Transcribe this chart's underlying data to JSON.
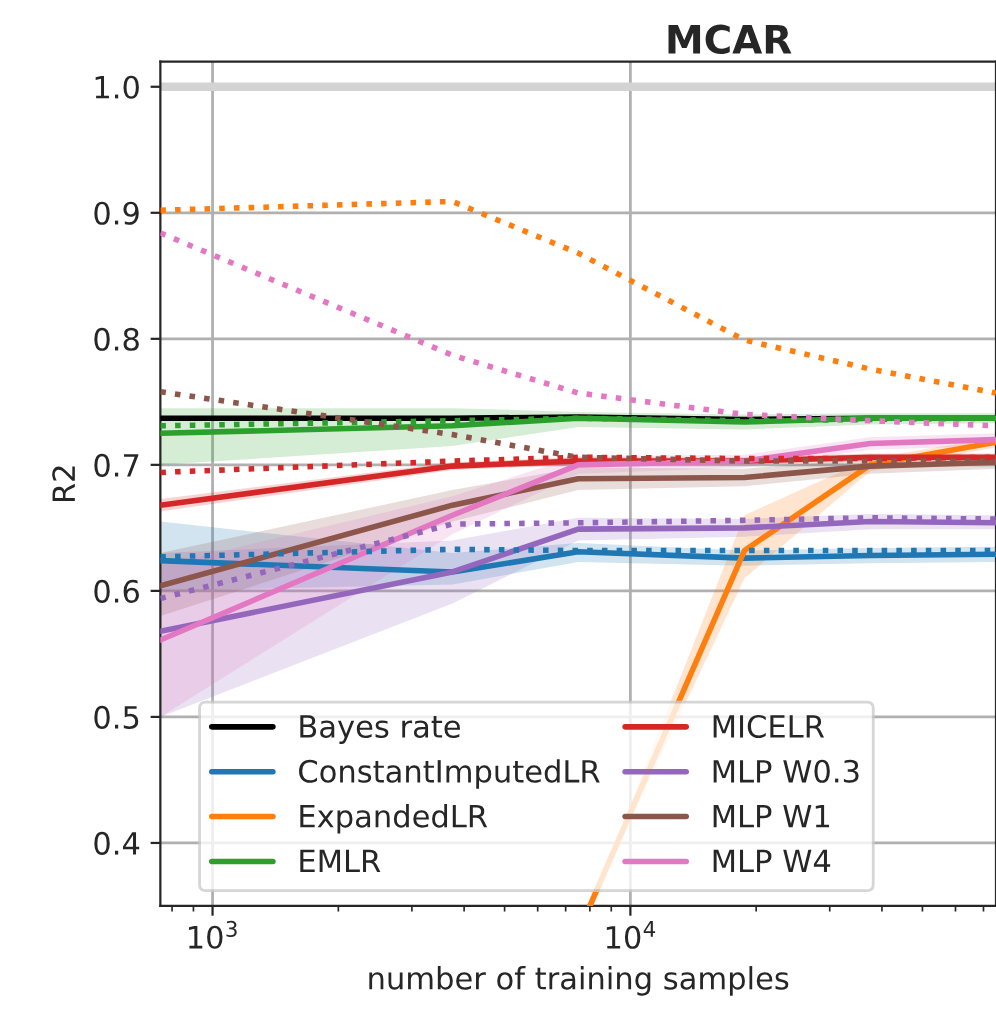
{
  "chart_data": {
    "type": "line",
    "title": "MCAR",
    "xlabel": "number of training samples",
    "ylabel": "R2",
    "x": [
      750,
      3750,
      7500,
      18750,
      37500,
      75000
    ],
    "series": [
      {
        "name": "Bayes rate",
        "color": "#000000",
        "line_style": "solid",
        "values": [
          0.737,
          0.737,
          0.738,
          0.736,
          0.737,
          0.737
        ]
      },
      {
        "name": "ConstantImputedLR",
        "color": "#1f77b4",
        "line_style": "solid",
        "values": [
          0.624,
          0.615,
          0.631,
          0.626,
          0.628,
          0.629
        ],
        "lower": [
          0.6,
          0.605,
          0.623,
          0.62,
          0.622,
          0.623
        ],
        "upper": [
          0.655,
          0.63,
          0.638,
          0.632,
          0.634,
          0.635
        ]
      },
      {
        "name": "ExpandedLR",
        "color": "#ff7f0e",
        "line_style": "solid",
        "x": [
          8000,
          18750,
          37500,
          75000
        ],
        "values": [
          0.35,
          0.632,
          0.7,
          0.718
        ],
        "lower": [
          0.35,
          0.61,
          0.695,
          0.714
        ],
        "upper": [
          0.35,
          0.66,
          0.705,
          0.722
        ]
      },
      {
        "name": "EMLR",
        "color": "#2ca02c",
        "line_style": "solid",
        "values": [
          0.725,
          0.731,
          0.737,
          0.734,
          0.737,
          0.737
        ],
        "lower": [
          0.7,
          0.715,
          0.73,
          0.728,
          0.732,
          0.733
        ],
        "upper": [
          0.745,
          0.745,
          0.742,
          0.74,
          0.741,
          0.741
        ]
      },
      {
        "name": "MICELR",
        "color": "#d62728",
        "line_style": "solid",
        "values": [
          0.668,
          0.699,
          0.703,
          0.703,
          0.706,
          0.706
        ],
        "lower": [
          0.663,
          0.696,
          0.7,
          0.7,
          0.703,
          0.703
        ],
        "upper": [
          0.673,
          0.702,
          0.706,
          0.706,
          0.709,
          0.709
        ]
      },
      {
        "name": "MLP W0.3",
        "color": "#9467bd",
        "line_style": "solid",
        "values": [
          0.568,
          0.615,
          0.649,
          0.65,
          0.655,
          0.654
        ],
        "lower": [
          0.5,
          0.59,
          0.64,
          0.643,
          0.649,
          0.649
        ],
        "upper": [
          0.63,
          0.64,
          0.658,
          0.657,
          0.661,
          0.66
        ]
      },
      {
        "name": "MLP W1",
        "color": "#8c564b",
        "line_style": "solid",
        "values": [
          0.604,
          0.668,
          0.689,
          0.69,
          0.699,
          0.702
        ],
        "lower": [
          0.58,
          0.655,
          0.68,
          0.683,
          0.693,
          0.697
        ],
        "upper": [
          0.63,
          0.68,
          0.698,
          0.697,
          0.705,
          0.707
        ]
      },
      {
        "name": "MLP W4",
        "color": "#e377c2",
        "line_style": "solid",
        "values": [
          0.561,
          0.66,
          0.7,
          0.703,
          0.717,
          0.72
        ],
        "lower": [
          0.5,
          0.645,
          0.693,
          0.698,
          0.712,
          0.715
        ],
        "upper": [
          0.62,
          0.675,
          0.707,
          0.708,
          0.722,
          0.725
        ]
      },
      {
        "color": "#1f77b4",
        "line_style": "dotted",
        "values": [
          0.627,
          0.633,
          0.632,
          0.632,
          0.632,
          0.632
        ]
      },
      {
        "color": "#ff7f0e",
        "line_style": "dotted",
        "values": [
          0.902,
          0.909,
          0.868,
          0.799,
          0.776,
          0.757
        ]
      },
      {
        "color": "#2ca02c",
        "line_style": "dotted",
        "values": [
          0.731,
          0.735,
          0.737,
          0.735,
          0.736,
          0.737
        ]
      },
      {
        "color": "#d62728",
        "line_style": "dotted",
        "values": [
          0.694,
          0.703,
          0.706,
          0.705,
          0.705,
          0.706
        ]
      },
      {
        "color": "#9467bd",
        "line_style": "dotted",
        "values": [
          0.594,
          0.653,
          0.654,
          0.656,
          0.658,
          0.657
        ]
      },
      {
        "color": "#8c564b",
        "line_style": "dotted",
        "values": [
          0.758,
          0.724,
          0.706,
          0.703,
          0.703,
          0.703
        ]
      },
      {
        "color": "#e377c2",
        "line_style": "dotted",
        "values": [
          0.884,
          0.787,
          0.757,
          0.74,
          0.735,
          0.731
        ]
      }
    ],
    "ref_lines": [
      {
        "axis": "y",
        "value": 1.0,
        "color": "#d3d3d3"
      }
    ],
    "log": "x",
    "xlim": [
      750,
      75000
    ],
    "xticks": [
      {
        "value": 1000,
        "label": "10$^{3}$"
      },
      {
        "value": 10000,
        "label": "10$^{4}$"
      }
    ],
    "ylim": [
      0.35,
      1.02
    ],
    "yticks": [
      0.4,
      0.5,
      0.6,
      0.7,
      0.8,
      0.9,
      {
        "value": 1.0,
        "label": "1.0"
      }
    ],
    "grid": true,
    "legend": "bottom"
  }
}
